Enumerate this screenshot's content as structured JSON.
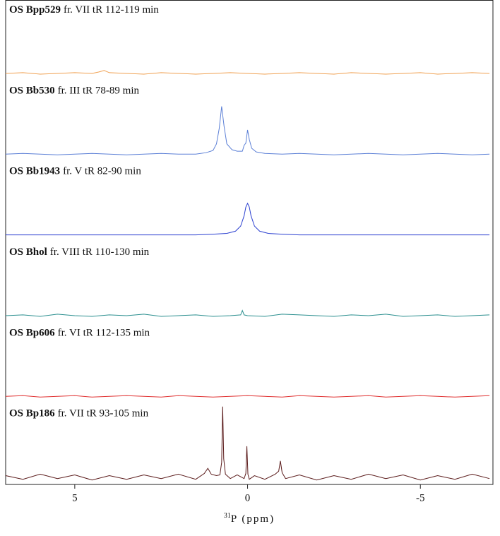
{
  "chart_data": {
    "type": "line",
    "xlabel_sup": "31",
    "xlabel": "P (ppm)",
    "xlim": [
      7,
      -7.1
    ],
    "xticks": [
      5,
      0,
      -5
    ],
    "ylim": [
      -10,
      100
    ],
    "series": [
      {
        "name": "OS Bpp529",
        "label": "fr. VII tR 112-119 min",
        "color": "#f0a050",
        "x": [
          7,
          6.5,
          6,
          5.5,
          5,
          4.5,
          4.3,
          4.15,
          4,
          3.5,
          3,
          2.5,
          2,
          1.5,
          1,
          0.5,
          0,
          -0.5,
          -1,
          -1.5,
          -2,
          -2.5,
          -3,
          -3.5,
          -4,
          -4.5,
          -5,
          -5.5,
          -6,
          -6.5,
          -7
        ],
        "values": [
          0,
          1,
          -1,
          0,
          1,
          0,
          2,
          4,
          1,
          0,
          -1,
          1,
          0,
          -1,
          0,
          1,
          0,
          -1,
          0,
          1,
          0,
          -1,
          1,
          0,
          -1,
          0,
          1,
          -1,
          0,
          1,
          0
        ]
      },
      {
        "name": "OS Bb530",
        "label": "fr. III tR 78-89 min",
        "color": "#5b7fd6",
        "x": [
          7,
          6.5,
          6,
          5.5,
          5,
          4.5,
          4,
          3.5,
          3,
          2.5,
          2,
          1.5,
          1.2,
          1.0,
          0.9,
          0.82,
          0.75,
          0.68,
          0.6,
          0.45,
          0.3,
          0.15,
          0.1,
          0.05,
          0,
          -0.05,
          -0.12,
          -0.25,
          -0.5,
          -1,
          -1.5,
          -2,
          -2.5,
          -3,
          -3.5,
          -4,
          -4.5,
          -5,
          -5.5,
          -6,
          -6.5,
          -7
        ],
        "values": [
          0,
          1,
          0,
          -1,
          0,
          1,
          0,
          -1,
          0,
          1,
          0,
          0,
          2,
          5,
          14,
          35,
          65,
          38,
          14,
          6,
          4,
          4,
          12,
          15,
          33,
          20,
          8,
          3,
          1,
          0,
          1,
          0,
          -1,
          0,
          1,
          0,
          -1,
          0,
          1,
          0,
          -1,
          0
        ]
      },
      {
        "name": "OS Bb1943",
        "label": "fr. V tR 82-90 min",
        "color": "#2a3fd0",
        "x": [
          7,
          6.5,
          6,
          5.5,
          5,
          4.5,
          4,
          3.5,
          3,
          2.5,
          2,
          1.5,
          1,
          0.6,
          0.35,
          0.2,
          0.1,
          0.05,
          0,
          -0.05,
          -0.1,
          -0.2,
          -0.35,
          -0.6,
          -1,
          -1.5,
          -2,
          -2.5,
          -3,
          -3.5,
          -4,
          -4.5,
          -5,
          -5.5,
          -6,
          -6.5,
          -7
        ],
        "values": [
          0,
          0,
          0,
          0,
          0,
          0,
          0,
          0,
          0,
          0,
          0,
          0,
          1,
          2,
          5,
          12,
          26,
          38,
          43,
          38,
          26,
          12,
          5,
          2,
          1,
          0,
          0,
          0,
          0,
          0,
          0,
          0,
          0,
          0,
          0,
          0,
          0
        ]
      },
      {
        "name": "OS Bhol",
        "label": "fr. VIII tR 110-130 min",
        "color": "#2b8f8f",
        "x": [
          7,
          6.5,
          6,
          5.5,
          5,
          4.5,
          4,
          3.5,
          3,
          2.5,
          2,
          1.5,
          1,
          0.5,
          0.2,
          0.15,
          0.1,
          0,
          -0.5,
          -1,
          -1.5,
          -2,
          -2.5,
          -3,
          -3.5,
          -4,
          -4.5,
          -5,
          -5.5,
          -6,
          -6.5,
          -7
        ],
        "values": [
          0,
          1,
          -1,
          2,
          0,
          -1,
          1,
          0,
          2,
          -1,
          0,
          1,
          -1,
          0,
          1,
          7,
          1,
          0,
          -1,
          2,
          1,
          0,
          -1,
          1,
          0,
          2,
          -1,
          0,
          1,
          -1,
          0,
          1
        ]
      },
      {
        "name": "OS Bp606",
        "label": "fr. VI tR 112-135 min",
        "color": "#e03030",
        "x": [
          7,
          6.5,
          6,
          5.5,
          5,
          4.5,
          4,
          3.5,
          3,
          2.5,
          2,
          1.5,
          1,
          0.5,
          0,
          -0.5,
          -1,
          -1.5,
          -2,
          -2.5,
          -3,
          -3.5,
          -4,
          -4.5,
          -5,
          -5.5,
          -6,
          -6.5,
          -7
        ],
        "values": [
          0,
          1,
          -1,
          0,
          1,
          -1,
          0,
          1,
          0,
          -1,
          1,
          0,
          -1,
          0,
          1,
          0,
          -1,
          1,
          0,
          -1,
          0,
          1,
          -1,
          0,
          1,
          0,
          -1,
          0,
          1
        ]
      },
      {
        "name": "OS Bp186",
        "label": "fr. VII tR 93-105 min",
        "color": "#5a1a1a",
        "x": [
          7,
          6.5,
          6,
          5.5,
          5,
          4.5,
          4,
          3.5,
          3,
          2.5,
          2,
          1.5,
          1.25,
          1.15,
          1.05,
          0.9,
          0.8,
          0.75,
          0.72,
          0.69,
          0.64,
          0.5,
          0.3,
          0.1,
          0.05,
          0.02,
          -0.01,
          -0.05,
          -0.2,
          -0.5,
          -0.8,
          -0.9,
          -0.95,
          -1.0,
          -1.1,
          -1.5,
          -2,
          -2.5,
          -3,
          -3.5,
          -4,
          -4.5,
          -5,
          -5.5,
          -6,
          -6.5,
          -7
        ],
        "values": [
          2,
          -3,
          4,
          -2,
          3,
          -4,
          2,
          -3,
          3,
          -2,
          4,
          -3,
          5,
          12,
          4,
          2,
          3,
          20,
          96,
          25,
          4,
          -2,
          3,
          -2,
          5,
          42,
          4,
          -3,
          2,
          -3,
          4,
          8,
          22,
          6,
          -2,
          3,
          -4,
          2,
          -3,
          4,
          -2,
          3,
          -4,
          2,
          -3,
          4,
          -2
        ]
      }
    ]
  }
}
